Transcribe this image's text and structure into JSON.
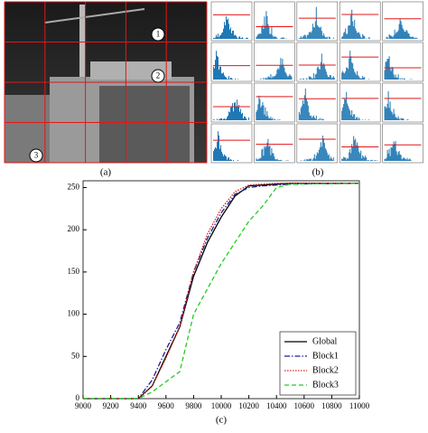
{
  "panel_a": {
    "caption": "(a)",
    "markers": [
      "1",
      "2",
      "3"
    ]
  },
  "panel_b": {
    "caption": "(b)"
  },
  "chart_data": {
    "type": "line",
    "caption": "(c)",
    "x": [
      9000,
      9100,
      9200,
      9300,
      9400,
      9500,
      9600,
      9700,
      9800,
      9900,
      10000,
      10100,
      10200,
      10300,
      10400,
      10500,
      11000
    ],
    "series": [
      {
        "name": "Global",
        "color": "#000000",
        "linestyle": "solid",
        "values": [
          0,
          0,
          0,
          0,
          0,
          15,
          50,
          85,
          145,
          185,
          215,
          240,
          252,
          253,
          254,
          255,
          255
        ]
      },
      {
        "name": "Block1",
        "color": "#1f1f8f",
        "linestyle": "dashdot",
        "values": [
          0,
          0,
          0,
          0,
          0,
          22,
          58,
          90,
          150,
          190,
          220,
          242,
          250,
          252,
          253,
          254,
          255
        ]
      },
      {
        "name": "Block2",
        "color": "#d62020",
        "linestyle": "dotted",
        "values": [
          0,
          0,
          0,
          0,
          0,
          15,
          48,
          85,
          150,
          195,
          225,
          245,
          253,
          254,
          255,
          255,
          255
        ]
      },
      {
        "name": "Block3",
        "color": "#22cc22",
        "linestyle": "dashed",
        "values": [
          0,
          0,
          0,
          0,
          0,
          8,
          20,
          32,
          100,
          130,
          160,
          185,
          210,
          228,
          250,
          254,
          255
        ]
      }
    ],
    "xlim": [
      9000,
      11000
    ],
    "xticks": [
      9000,
      9200,
      9400,
      9600,
      9800,
      10000,
      10200,
      10400,
      10600,
      10800,
      11000
    ],
    "ylim": [
      0,
      258
    ],
    "yticks": [
      0,
      50,
      100,
      150,
      200,
      250
    ],
    "legend": "lower right"
  }
}
